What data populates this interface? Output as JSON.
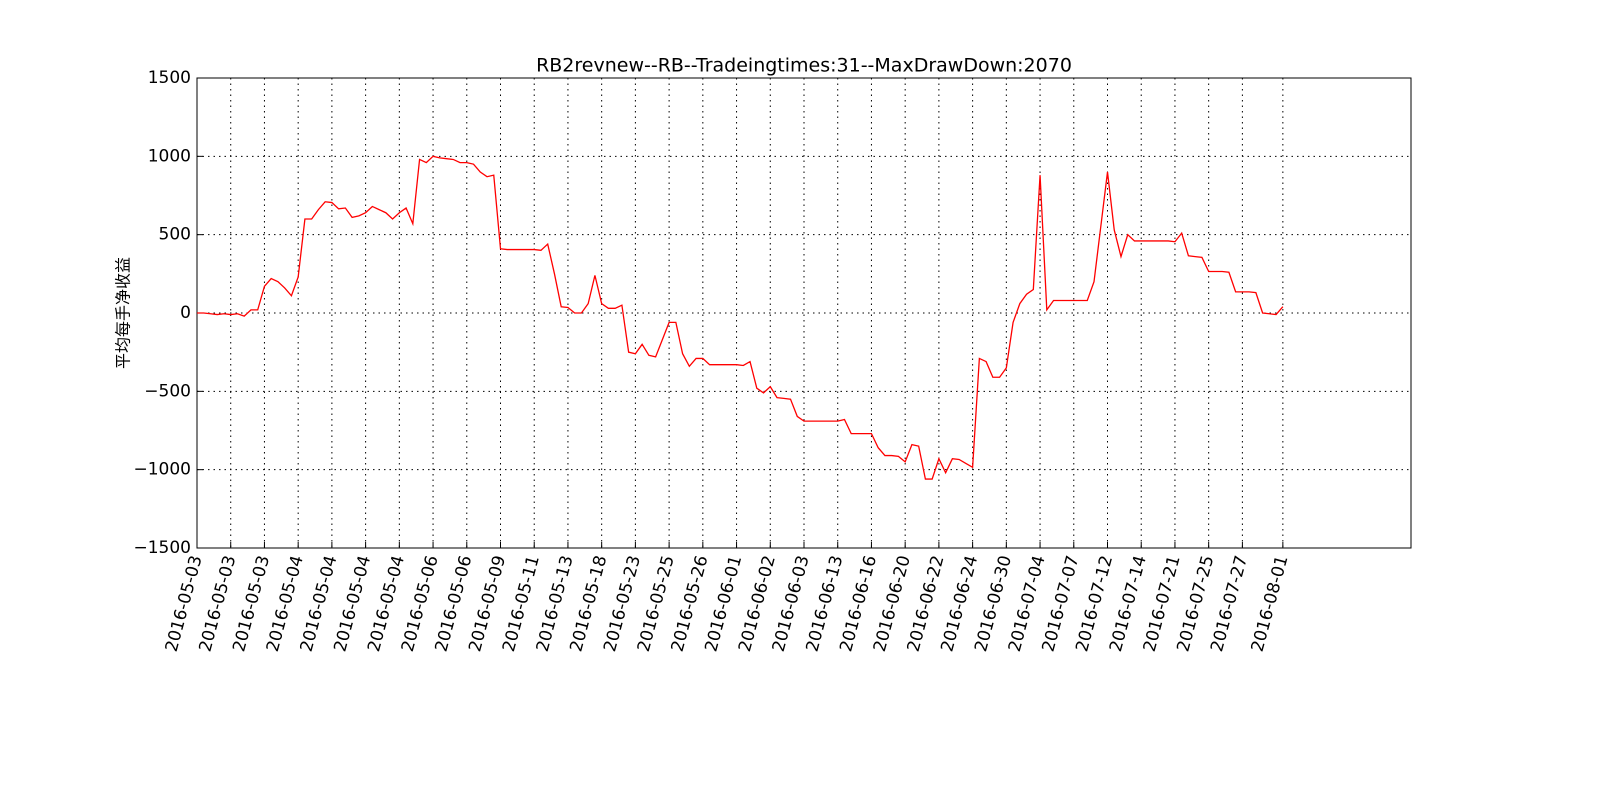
{
  "chart_data": {
    "type": "line",
    "title": "RB2revnew--RB--Tradeingtimes:31--MaxDrawDown:2070",
    "ylabel": "平均每手净收益",
    "x": [
      0,
      1,
      2,
      3,
      4,
      5,
      6,
      7,
      8,
      9,
      10,
      11,
      12,
      13,
      14,
      15,
      16,
      17,
      18,
      19,
      20,
      21,
      22,
      23,
      24,
      25,
      26,
      27,
      28,
      29,
      30,
      31,
      32,
      33,
      34,
      35,
      36,
      37,
      38,
      39,
      40,
      41,
      42,
      43,
      44,
      45,
      46,
      47,
      48,
      49,
      50,
      51,
      52,
      53,
      54,
      55,
      56,
      57,
      58,
      59,
      60,
      61,
      62,
      63,
      64,
      65,
      66,
      67,
      68,
      69,
      70,
      71,
      72,
      73,
      74,
      75,
      76,
      77,
      78,
      79,
      80,
      81,
      82,
      83,
      84,
      85,
      86,
      87,
      88,
      89,
      90,
      91,
      92,
      93,
      94,
      95,
      96,
      97,
      98,
      99,
      100,
      101,
      102,
      103,
      104,
      105,
      106,
      107,
      108,
      109,
      110,
      111,
      112,
      113,
      114,
      115,
      116,
      117,
      118,
      119,
      120,
      121,
      122,
      123,
      124,
      125,
      126,
      127,
      128,
      129,
      130,
      131,
      132,
      133,
      134,
      135,
      136,
      137,
      138,
      139,
      140,
      141,
      142,
      143,
      144,
      145,
      146,
      147,
      148,
      149,
      150,
      151,
      152,
      153,
      154,
      155,
      156,
      157,
      158,
      159,
      160,
      161
    ],
    "series": [
      {
        "color": "#ff0000",
        "values": [
          0,
          0,
          -5,
          -10,
          -5,
          -10,
          -5,
          -20,
          20,
          20,
          170,
          220,
          200,
          160,
          110,
          230,
          600,
          600,
          660,
          710,
          705,
          665,
          670,
          610,
          620,
          640,
          680,
          660,
          640,
          600,
          640,
          670,
          570,
          980,
          960,
          1000,
          990,
          985,
          980,
          960,
          960,
          950,
          900,
          870,
          880,
          410,
          405,
          405,
          405,
          405,
          405,
          400,
          440,
          250,
          40,
          35,
          0,
          0,
          60,
          240,
          60,
          30,
          30,
          50,
          -250,
          -260,
          -200,
          -270,
          -280,
          -170,
          -60,
          -60,
          -260,
          -340,
          -290,
          -290,
          -330,
          -330,
          -330,
          -330,
          -330,
          -335,
          -310,
          -480,
          -510,
          -470,
          -540,
          -545,
          -550,
          -660,
          -690,
          -690,
          -690,
          -690,
          -690,
          -690,
          -680,
          -770,
          -770,
          -770,
          -770,
          -860,
          -910,
          -910,
          -915,
          -950,
          -840,
          -850,
          -1060,
          -1060,
          -930,
          -1020,
          -930,
          -935,
          -960,
          -985,
          -290,
          -310,
          -410,
          -410,
          -350,
          -60,
          60,
          120,
          150,
          880,
          20,
          80,
          80,
          80,
          80,
          80,
          80,
          200,
          550,
          900,
          530,
          360,
          500,
          460,
          460,
          460,
          460,
          460,
          460,
          455,
          510,
          365,
          360,
          355,
          265,
          265,
          265,
          260,
          135,
          135,
          135,
          130,
          0,
          -5,
          -10,
          40
        ]
      }
    ],
    "xlim": [
      0,
      180
    ],
    "xticks": [
      {
        "value": 0,
        "label": "2016-05-03"
      },
      {
        "value": 5,
        "label": "2016-05-03"
      },
      {
        "value": 10,
        "label": "2016-05-03"
      },
      {
        "value": 15,
        "label": "2016-05-04"
      },
      {
        "value": 20,
        "label": "2016-05-04"
      },
      {
        "value": 25,
        "label": "2016-05-04"
      },
      {
        "value": 30,
        "label": "2016-05-04"
      },
      {
        "value": 35,
        "label": "2016-05-06"
      },
      {
        "value": 40,
        "label": "2016-05-06"
      },
      {
        "value": 45,
        "label": "2016-05-09"
      },
      {
        "value": 50,
        "label": "2016-05-11"
      },
      {
        "value": 55,
        "label": "2016-05-13"
      },
      {
        "value": 60,
        "label": "2016-05-18"
      },
      {
        "value": 65,
        "label": "2016-05-23"
      },
      {
        "value": 70,
        "label": "2016-05-25"
      },
      {
        "value": 75,
        "label": "2016-05-26"
      },
      {
        "value": 80,
        "label": "2016-06-01"
      },
      {
        "value": 85,
        "label": "2016-06-02"
      },
      {
        "value": 90,
        "label": "2016-06-03"
      },
      {
        "value": 95,
        "label": "2016-06-13"
      },
      {
        "value": 100,
        "label": "2016-06-16"
      },
      {
        "value": 105,
        "label": "2016-06-20"
      },
      {
        "value": 110,
        "label": "2016-06-22"
      },
      {
        "value": 115,
        "label": "2016-06-24"
      },
      {
        "value": 120,
        "label": "2016-06-30"
      },
      {
        "value": 125,
        "label": "2016-07-04"
      },
      {
        "value": 130,
        "label": "2016-07-07"
      },
      {
        "value": 135,
        "label": "2016-07-12"
      },
      {
        "value": 140,
        "label": "2016-07-14"
      },
      {
        "value": 145,
        "label": "2016-07-21"
      },
      {
        "value": 150,
        "label": "2016-07-25"
      },
      {
        "value": 155,
        "label": "2016-07-27"
      },
      {
        "value": 161,
        "label": "2016-08-01"
      }
    ],
    "ylim": [
      -1500,
      1500
    ],
    "yticks": [
      {
        "value": -1500,
        "label": "−1500"
      },
      {
        "value": -1000,
        "label": "−1000"
      },
      {
        "value": -500,
        "label": "−500"
      },
      0,
      500,
      1000,
      1500
    ],
    "grid": true
  }
}
